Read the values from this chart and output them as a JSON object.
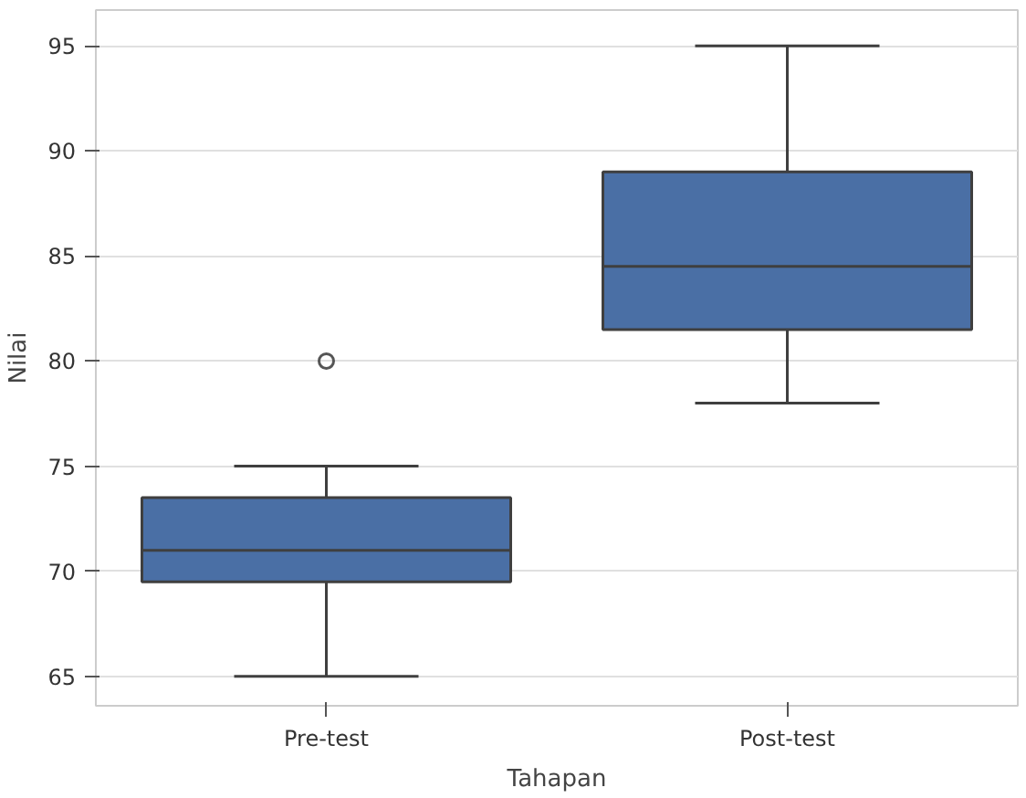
{
  "chart_data": {
    "type": "box",
    "xlabel": "Tahapan",
    "ylabel": "Nilai",
    "categories": [
      "Pre-test",
      "Post-test"
    ],
    "color": "#4a6fa5",
    "boxes": [
      {
        "low": 65,
        "q1": 69.5,
        "median": 71,
        "q3": 73.5,
        "high": 75,
        "outliers": [
          80
        ]
      },
      {
        "low": 78,
        "q1": 81.5,
        "median": 84.5,
        "q3": 89,
        "high": 95
      }
    ],
    "ylim": [
      63.6,
      96.7
    ],
    "yticks": [
      65,
      70,
      75,
      80,
      85,
      90,
      95
    ],
    "grid": "y"
  }
}
